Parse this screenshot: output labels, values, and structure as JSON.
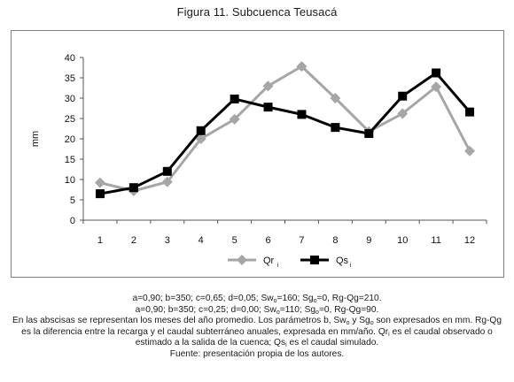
{
  "figure": {
    "title": "Figura 11. Subcuenca Teusacá"
  },
  "chart_data": {
    "type": "line",
    "categories": [
      "1",
      "2",
      "3",
      "4",
      "5",
      "6",
      "7",
      "8",
      "9",
      "10",
      "11",
      "12"
    ],
    "ylabel": "mm",
    "ylim": [
      0,
      40
    ],
    "yticks": [
      0,
      5,
      10,
      15,
      20,
      25,
      30,
      35,
      40
    ],
    "grid": false,
    "legend": "bottom",
    "series": [
      {
        "name": "Qr",
        "name_sub": "i",
        "color": "#a6a6a6",
        "marker": "diamond",
        "values": [
          9.2,
          7.2,
          9.4,
          20.0,
          24.8,
          33.0,
          37.8,
          30.0,
          21.8,
          26.2,
          32.8,
          17.0
        ]
      },
      {
        "name": "Qs",
        "name_sub": "i",
        "color": "#000000",
        "marker": "square",
        "values": [
          6.5,
          8.0,
          12.0,
          22.0,
          29.8,
          27.8,
          26.0,
          22.8,
          21.3,
          30.5,
          36.2,
          26.6
        ]
      }
    ]
  },
  "caption": {
    "line1": {
      "pre": "a=0,90; b=350; c=0,65; d=0,05; Sw",
      "sub1": "o",
      "mid": "=160; Sg",
      "sub2": "o",
      "post": "=0, Rg-Qg=210."
    },
    "line2": {
      "pre": "a=0,90; b=350; c=0,25; d=0,00; Sw",
      "sub1": "o",
      "mid": "=110; Sg",
      "sub2": "o",
      "post": "=0, Rg-Qg=90."
    },
    "line3": {
      "a": "En las abscisas se representan los meses del año promedio. Los parámetros b, Sw",
      "sub1": "o",
      "b": " y Sg",
      "sub2": "o",
      "c": " son expresados en mm. Rg-Qg"
    },
    "line4": {
      "a": "es la diferencia entre la recarga y el caudal subterráneo anuales, expresada en mm/año. Qr",
      "sub1": "i",
      "b": " es el caudal observado o"
    },
    "line5": {
      "a": "estimado a la salida de la cuenca; Qs",
      "sub1": "i",
      "b": " es el caudal simulado."
    },
    "line6": "Fuente: presentación propia de los autores."
  }
}
